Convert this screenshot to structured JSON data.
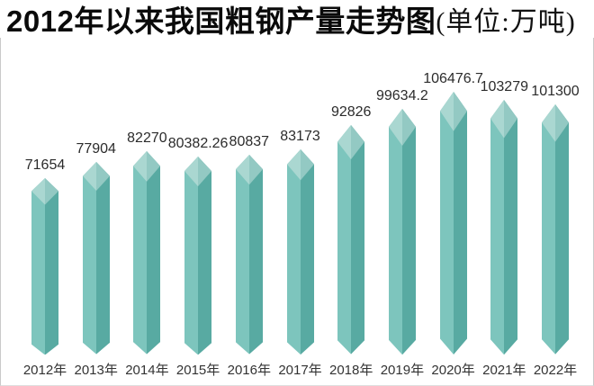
{
  "title": {
    "main": "2012年以来我国粗钢产量走势图",
    "unit": "(单位:万吨)"
  },
  "chart_data": {
    "type": "bar",
    "title": "2012年以来我国粗钢产量走势图",
    "unit_label": "单位:万吨",
    "categories": [
      "2012年",
      "2013年",
      "2014年",
      "2015年",
      "2016年",
      "2017年",
      "2018年",
      "2019年",
      "2020年",
      "2021年",
      "2022年"
    ],
    "values": [
      71654,
      77904,
      82270,
      80382.26,
      80837,
      83173,
      92826,
      99634.2,
      106476.7,
      103279,
      101300
    ],
    "value_labels": [
      "71654",
      "77904",
      "82270",
      "80382.26",
      "80837",
      "83173",
      "92826",
      "99634.2",
      "106476.7",
      "103279",
      "101300"
    ],
    "xlabel": "",
    "ylabel": "",
    "ylim": [
      0,
      110000
    ],
    "grid": false,
    "legend": false,
    "bar_style": "3d-crystal-pointed",
    "bar_colors": {
      "body_left": "#7dc5bd",
      "body_right": "#58aaa2",
      "cap_left": "#aad7d1",
      "cap_right": "#93c9c3"
    },
    "axis_border_color": "#c9c9c9",
    "label_color": "#2b2b2b"
  }
}
